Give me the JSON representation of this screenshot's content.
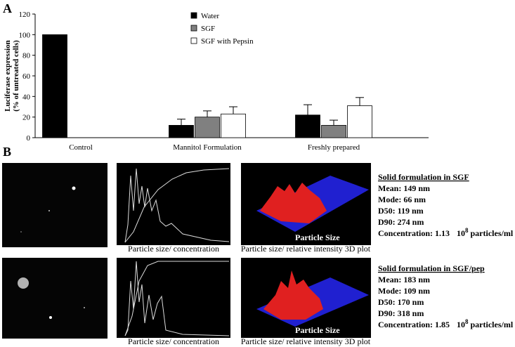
{
  "panel_labels": [
    "A",
    "B"
  ],
  "chart_data": {
    "type": "bar",
    "ylabel": [
      "Luciferase expression",
      "(% of untreated cells)"
    ],
    "categories": [
      "Control",
      "Mannitol Formulation",
      "Freshly prepared"
    ],
    "series": [
      {
        "name": "Water",
        "color": "#000000",
        "values": [
          100,
          12,
          22
        ],
        "errors": [
          null,
          6,
          10
        ]
      },
      {
        "name": "SGF",
        "color": "#808080",
        "values": [
          null,
          20,
          12
        ],
        "errors": [
          null,
          6,
          5
        ]
      },
      {
        "name": "SGF with Pepsin",
        "color": "#ffffff",
        "values": [
          null,
          23,
          31
        ],
        "errors": [
          null,
          7,
          8
        ]
      }
    ],
    "ylim": [
      0,
      120
    ],
    "yticks": [
      0,
      20,
      40,
      60,
      80,
      100,
      120
    ],
    "grid": false,
    "legend": "top"
  },
  "panel_b": {
    "rows": [
      {
        "caption_left": "Particle size/ concentration",
        "caption_right": "Particle size/ relative intensity 3D plot",
        "title": "Solid formulation in SGF",
        "lines": [
          "Mean: 149 nm",
          "Mode: 66 nm",
          "D50: 119 nm",
          "D90: 274 nm"
        ],
        "concentration": {
          "label": "Concentration: 1.13",
          "base": "10",
          "exponent": "8",
          "unit": "particles/ml"
        }
      },
      {
        "caption_left": "Particle size/ concentration",
        "caption_right": "Particle size/ relative intensity 3D plot",
        "title": "Solid formulation in SGF/pep",
        "lines": [
          "Mean: 183 nm",
          "Mode: 109 nm",
          "D50: 170 nm",
          "D90: 318 nm"
        ],
        "concentration": {
          "label": "Concentration: 1.85",
          "base": "10",
          "exponent": "8",
          "unit": "particles/ml"
        }
      }
    ]
  }
}
